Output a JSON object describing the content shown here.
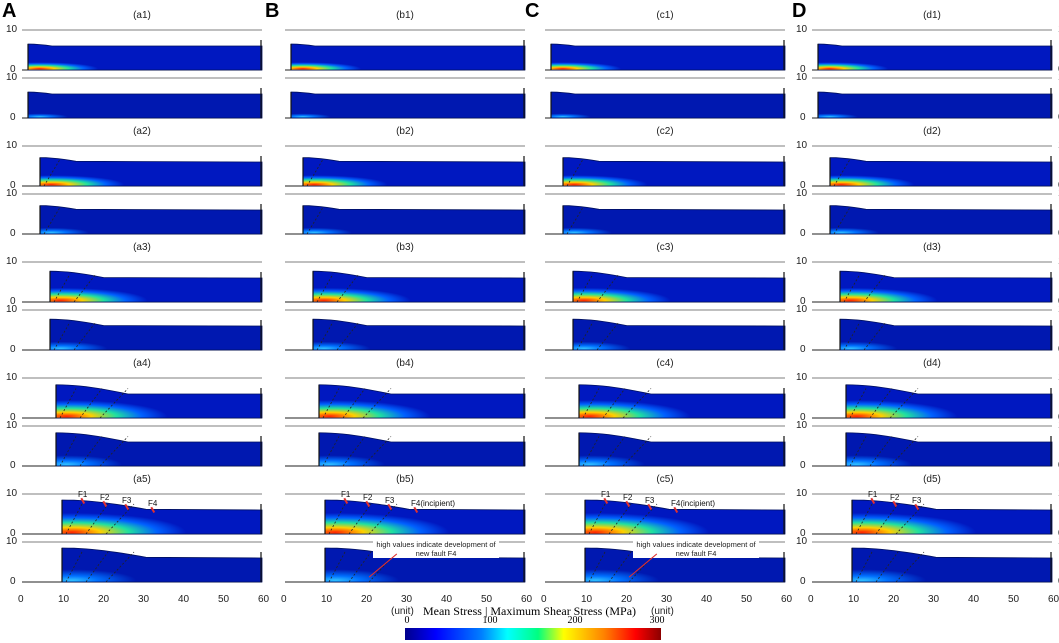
{
  "columns": [
    {
      "letter": "A",
      "stages": [
        "(a1)",
        "(a2)",
        "(a3)",
        "(a4)",
        "(a5)"
      ],
      "annotations": [
        "F1",
        "F2",
        "F3",
        "F4"
      ],
      "note": "",
      "left_axis": true,
      "right_axis": false,
      "unit": ""
    },
    {
      "letter": "B",
      "stages": [
        "(b1)",
        "(b2)",
        "(b3)",
        "(b4)",
        "(b5)"
      ],
      "annotations": [
        "F1",
        "F2",
        "F3",
        "F4(incipient)"
      ],
      "note": "high values indicate development of new fault F4",
      "left_axis": false,
      "right_axis": false,
      "unit": "(unit)"
    },
    {
      "letter": "C",
      "stages": [
        "(c1)",
        "(c2)",
        "(c3)",
        "(c4)",
        "(c5)"
      ],
      "annotations": [
        "F1",
        "F2",
        "F3",
        "F4(incipient)"
      ],
      "note": "high values indicate development of new fault F4",
      "left_axis": false,
      "right_axis": false,
      "unit": "(unit)"
    },
    {
      "letter": "D",
      "stages": [
        "(d1)",
        "(d2)",
        "(d3)",
        "(d4)",
        "(d5)"
      ],
      "annotations": [
        "F1",
        "F2",
        "F3"
      ],
      "note": "",
      "left_axis": true,
      "right_axis": true,
      "unit": ""
    }
  ],
  "chart_data": {
    "type": "heatmap",
    "x_ticks": [
      "0",
      "10",
      "20",
      "30",
      "40",
      "50",
      "60"
    ],
    "xlim": [
      0,
      60
    ],
    "y_ticks": [
      "0",
      "10"
    ],
    "ylim": [
      0,
      10
    ],
    "xlabel": "(unit)",
    "colorbar": {
      "title": "Mean Stress | Maximum Shear Stress (MPa)",
      "ticks": [
        "0",
        "100",
        "200",
        "300"
      ],
      "range": [
        0,
        300
      ],
      "colormap": "jet"
    }
  }
}
